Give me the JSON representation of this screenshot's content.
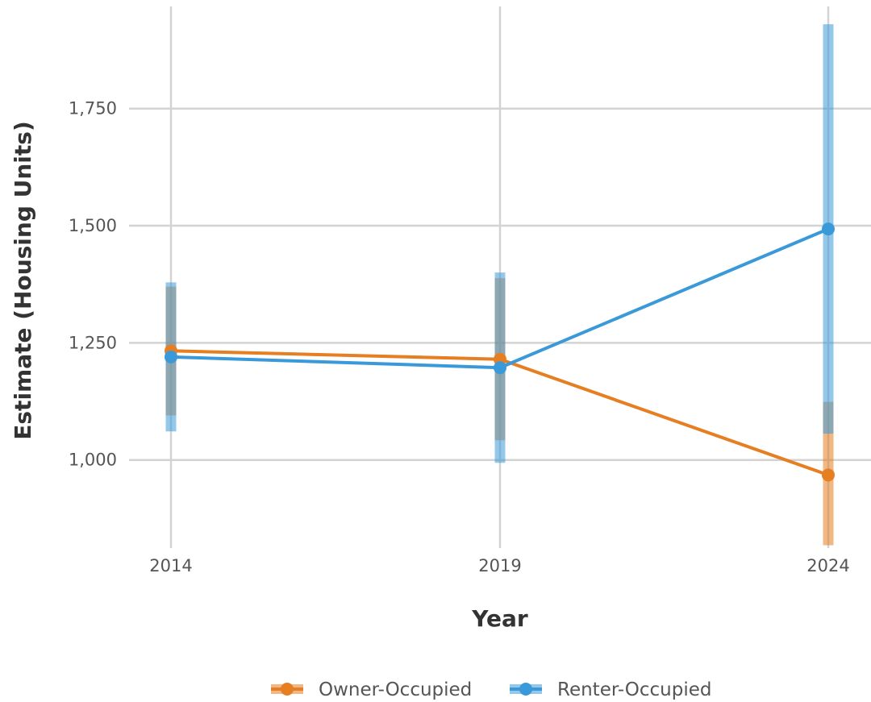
{
  "chart_data": {
    "type": "line",
    "xlabel": "Year",
    "ylabel": "Estimate (Housing Units)",
    "x": [
      2014,
      2019,
      2024
    ],
    "x_tick_labels": [
      "2014",
      "2019",
      "2024"
    ],
    "y_ticks": [
      1000,
      1250,
      1500,
      1750
    ],
    "y_tick_labels": [
      "1,000",
      "1,250",
      "1,500",
      "1,750"
    ],
    "ylim": [
      812,
      1968
    ],
    "grid": true,
    "legend_position": "bottom",
    "series": [
      {
        "name": "Owner-Occupied",
        "color": "#E67E22",
        "values": [
          1233,
          1215,
          968
        ],
        "lower": [
          1095,
          1042,
          818
        ],
        "upper": [
          1370,
          1388,
          1124
        ]
      },
      {
        "name": "Renter-Occupied",
        "color": "#3A9AD9",
        "values": [
          1220,
          1197,
          1493
        ],
        "lower": [
          1061,
          994,
          1056
        ],
        "upper": [
          1379,
          1400,
          1930
        ]
      }
    ]
  }
}
